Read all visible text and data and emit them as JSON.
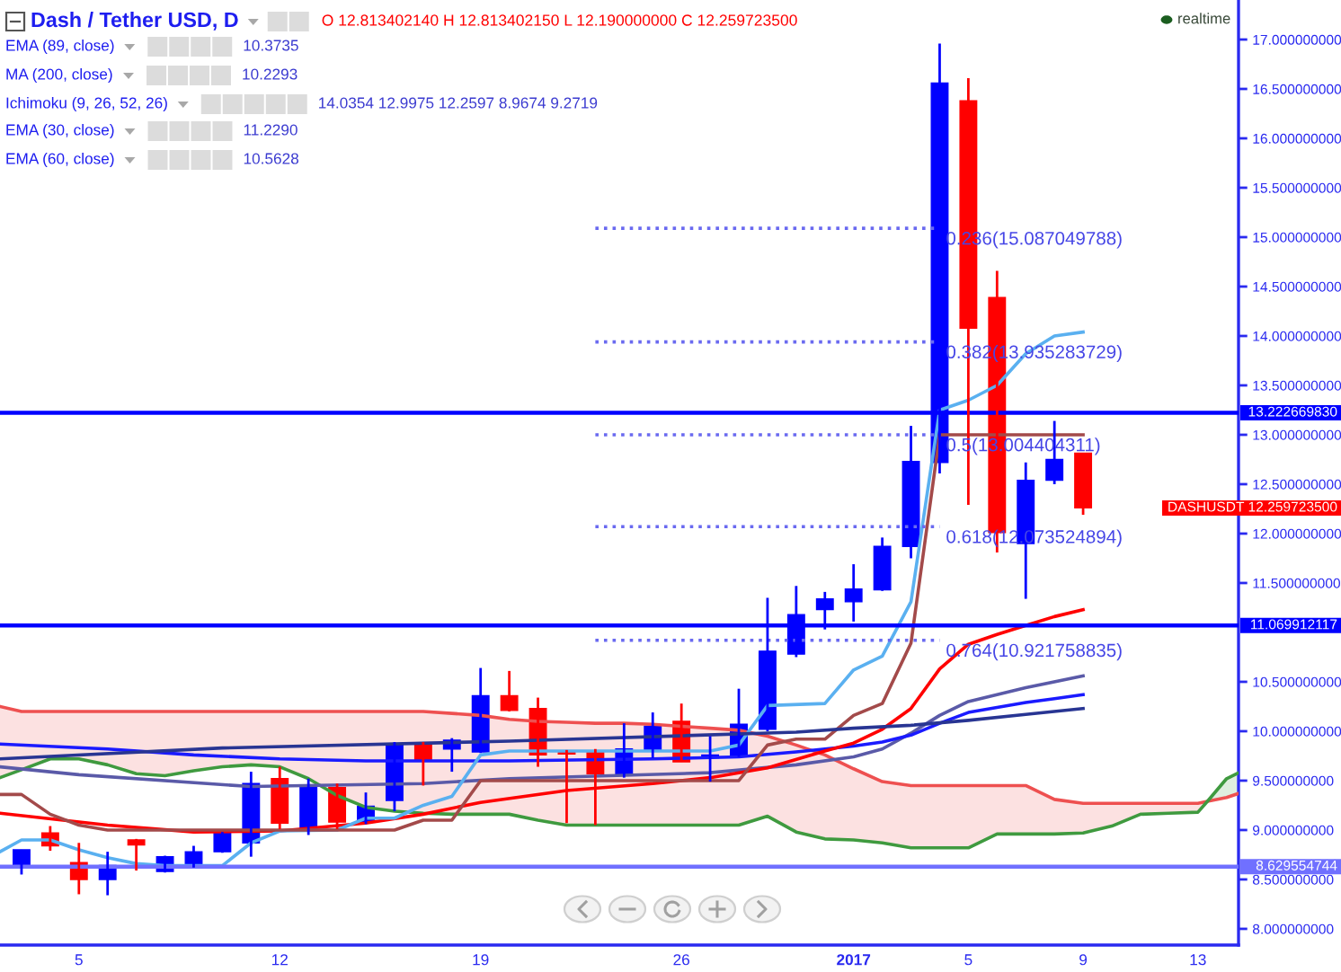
{
  "chart_data": {
    "type": "candlestick",
    "title": "Dash / Tether USD, D",
    "x": [
      "2016-12-03",
      "2016-12-04",
      "2016-12-05",
      "2016-12-06",
      "2016-12-07",
      "2016-12-08",
      "2016-12-09",
      "2016-12-10",
      "2016-12-11",
      "2016-12-12",
      "2016-12-13",
      "2016-12-14",
      "2016-12-15",
      "2016-12-16",
      "2016-12-17",
      "2016-12-18",
      "2016-12-19",
      "2016-12-20",
      "2016-12-21",
      "2016-12-22",
      "2016-12-23",
      "2016-12-24",
      "2016-12-25",
      "2016-12-26",
      "2016-12-27",
      "2016-12-28",
      "2016-12-29",
      "2016-12-30",
      "2016-12-31",
      "2017-01-01",
      "2017-01-02",
      "2017-01-03",
      "2017-01-04",
      "2017-01-05",
      "2017-01-06",
      "2017-01-07",
      "2017-01-08",
      "2017-01-09"
    ],
    "ohlc": [
      [
        8.63,
        8.8,
        8.55,
        8.8
      ],
      [
        8.97,
        9.04,
        8.79,
        8.84
      ],
      [
        8.67,
        8.87,
        8.35,
        8.5
      ],
      [
        8.5,
        8.78,
        8.34,
        8.64
      ],
      [
        8.9,
        8.91,
        8.59,
        8.85
      ],
      [
        8.58,
        8.74,
        8.57,
        8.73
      ],
      [
        8.63,
        8.84,
        8.62,
        8.78
      ],
      [
        8.78,
        8.98,
        8.77,
        8.98
      ],
      [
        8.87,
        9.59,
        8.73,
        9.47
      ],
      [
        9.52,
        9.64,
        9.01,
        9.07
      ],
      [
        9.01,
        9.52,
        8.95,
        9.43
      ],
      [
        9.43,
        9.47,
        9.01,
        9.08
      ],
      [
        9.08,
        9.38,
        9.06,
        9.24
      ],
      [
        9.3,
        9.89,
        9.19,
        9.87
      ],
      [
        9.88,
        9.89,
        9.45,
        9.71
      ],
      [
        9.82,
        9.93,
        9.59,
        9.91
      ],
      [
        9.79,
        10.64,
        9.78,
        10.36
      ],
      [
        10.36,
        10.61,
        10.2,
        10.21
      ],
      [
        10.23,
        10.34,
        9.64,
        9.76
      ],
      [
        9.8,
        9.81,
        9.07,
        9.77
      ],
      [
        9.8,
        9.82,
        9.05,
        9.57
      ],
      [
        9.57,
        10.08,
        9.53,
        9.82
      ],
      [
        9.81,
        10.19,
        9.73,
        10.05
      ],
      [
        10.1,
        10.28,
        9.69,
        9.69
      ],
      [
        9.73,
        9.95,
        9.49,
        9.76
      ],
      [
        9.75,
        10.43,
        9.74,
        10.07
      ],
      [
        10.02,
        11.35,
        10.0,
        10.81
      ],
      [
        10.78,
        11.47,
        10.75,
        11.18
      ],
      [
        11.23,
        11.41,
        11.03,
        11.34
      ],
      [
        11.31,
        11.69,
        11.11,
        11.44
      ],
      [
        11.43,
        11.96,
        11.42,
        11.87
      ],
      [
        11.87,
        13.09,
        11.75,
        12.73
      ],
      [
        12.72,
        16.96,
        12.61,
        16.56
      ],
      [
        16.38,
        16.61,
        12.29,
        14.08
      ],
      [
        14.39,
        14.66,
        11.81,
        12.01
      ],
      [
        11.9,
        12.72,
        11.34,
        12.54
      ],
      [
        12.54,
        13.14,
        12.5,
        12.75
      ],
      [
        12.81340214,
        12.81340215,
        12.19,
        12.2597235
      ]
    ],
    "colors": [
      "#0000ff",
      "#ff0000",
      "#ff0000",
      "#0000ff",
      "#ff0000",
      "#0000ff",
      "#0000ff",
      "#0000ff",
      "#0000ff",
      "#ff0000",
      "#0000ff",
      "#ff0000",
      "#0000ff",
      "#0000ff",
      "#ff0000",
      "#0000ff",
      "#0000ff",
      "#ff0000",
      "#ff0000",
      "#ff0000",
      "#ff0000",
      "#0000ff",
      "#0000ff",
      "#ff0000",
      "#0000ff",
      "#0000ff",
      "#0000ff",
      "#0000ff",
      "#0000ff",
      "#0000ff",
      "#0000ff",
      "#0000ff",
      "#0000ff",
      "#ff0000",
      "#ff0000",
      "#0000ff",
      "#0000ff",
      "#ff0000"
    ],
    "series": [
      {
        "type": "line",
        "color": "#ee5050",
        "x": [
          "2016-12-02T06:00",
          "2016-12-03",
          "2016-12-04",
          "2016-12-05",
          "2016-12-06",
          "2016-12-07",
          "2016-12-08",
          "2016-12-09",
          "2016-12-10",
          "2016-12-11",
          "2016-12-12",
          "2016-12-13",
          "2016-12-14",
          "2016-12-15",
          "2016-12-16",
          "2016-12-17",
          "2016-12-18",
          "2016-12-19",
          "2016-12-20",
          "2016-12-21",
          "2016-12-22",
          "2016-12-23",
          "2016-12-24",
          "2016-12-25",
          "2016-12-26",
          "2016-12-27",
          "2016-12-28",
          "2016-12-29",
          "2016-12-30",
          "2016-12-31",
          "2017-01-01",
          "2017-01-02",
          "2017-01-03",
          "2017-01-04",
          "2017-01-05",
          "2017-01-06",
          "2017-01-07",
          "2017-01-08",
          "2017-01-09",
          "2017-01-10",
          "2017-01-11",
          "2017-01-12",
          "2017-01-13",
          "2017-01-13T08:00",
          "2017-01-14",
          "2017-01-14T10:00"
        ],
        "values": [
          10.25,
          10.2,
          10.2,
          10.2,
          10.2,
          10.2,
          10.2,
          10.2,
          10.2,
          10.2,
          10.2,
          10.2,
          10.2,
          10.2,
          10.2,
          10.2,
          10.18,
          10.16,
          10.12,
          10.1,
          10.09,
          10.08,
          10.08,
          10.07,
          10.05,
          10.03,
          10.01,
          9.95,
          9.86,
          9.76,
          9.62,
          9.49,
          9.45,
          9.45,
          9.45,
          9.45,
          9.45,
          9.31,
          9.27,
          9.27,
          9.27,
          9.27,
          9.27,
          9.29,
          9.33,
          9.37
        ],
        "lower": [
          9.53,
          9.61,
          9.72,
          9.72,
          9.66,
          9.57,
          9.55,
          9.6,
          9.64,
          9.66,
          9.64,
          9.52,
          9.35,
          9.23,
          9.19,
          9.17,
          9.16,
          9.16,
          9.16,
          9.1,
          9.05,
          9.05,
          9.05,
          9.05,
          9.05,
          9.05,
          9.05,
          9.14,
          8.98,
          8.91,
          8.9,
          8.87,
          8.82,
          8.82,
          8.82,
          8.96,
          8.96,
          8.96,
          8.97,
          9.04,
          9.16,
          9.17,
          9.18,
          9.29,
          null,
          null
        ],
        "upper": [
          10.25,
          10.2,
          10.2,
          10.2,
          10.2,
          10.2,
          10.2,
          10.2,
          10.2,
          10.2,
          10.2,
          10.2,
          10.2,
          10.2,
          10.2,
          10.2,
          10.18,
          10.16,
          10.12,
          10.1,
          10.09,
          10.08,
          10.08,
          10.07,
          10.05,
          10.03,
          10.01,
          9.95,
          9.86,
          9.76,
          9.62,
          9.49,
          9.45,
          9.45,
          9.45,
          9.45,
          9.45,
          9.31,
          9.27,
          9.27,
          9.27,
          9.27,
          9.27,
          9.29,
          null,
          null
        ]
      },
      {
        "type": "line",
        "color": "#3f9a3f",
        "x": [
          "2016-12-02T06:00",
          "2016-12-03",
          "2016-12-04",
          "2016-12-05",
          "2016-12-06",
          "2016-12-07",
          "2016-12-08",
          "2016-12-09",
          "2016-12-10",
          "2016-12-11",
          "2016-12-12",
          "2016-12-13",
          "2016-12-14",
          "2016-12-15",
          "2016-12-16",
          "2016-12-17",
          "2016-12-18",
          "2016-12-19",
          "2016-12-20",
          "2016-12-21",
          "2016-12-22",
          "2016-12-23",
          "2016-12-24",
          "2016-12-25",
          "2016-12-26",
          "2016-12-27",
          "2016-12-28",
          "2016-12-29",
          "2016-12-30",
          "2016-12-31",
          "2017-01-01",
          "2017-01-02",
          "2017-01-03",
          "2017-01-04",
          "2017-01-05",
          "2017-01-06",
          "2017-01-07",
          "2017-01-08",
          "2017-01-09",
          "2017-01-10",
          "2017-01-11",
          "2017-01-12",
          "2017-01-13",
          "2017-01-13T08:00",
          "2017-01-14",
          "2017-01-14T10:00"
        ],
        "values": [
          9.53,
          9.61,
          9.72,
          9.72,
          9.66,
          9.57,
          9.55,
          9.6,
          9.64,
          9.66,
          9.64,
          9.52,
          9.35,
          9.23,
          9.19,
          9.17,
          9.16,
          9.16,
          9.16,
          9.1,
          9.05,
          9.05,
          9.05,
          9.05,
          9.05,
          9.05,
          9.05,
          9.14,
          8.98,
          8.91,
          8.9,
          8.87,
          8.82,
          8.82,
          8.82,
          8.96,
          8.96,
          8.96,
          8.97,
          9.04,
          9.16,
          9.17,
          9.18,
          9.29,
          9.52,
          9.58
        ],
        "lower": [
          null,
          null,
          null,
          null,
          null,
          null,
          null,
          null,
          null,
          null,
          null,
          null,
          null,
          null,
          null,
          null,
          null,
          null,
          null,
          null,
          null,
          null,
          null,
          null,
          null,
          null,
          null,
          null,
          null,
          null,
          null,
          null,
          null,
          null,
          null,
          null,
          null,
          null,
          null,
          null,
          null,
          null,
          null,
          9.29,
          9.33,
          9.37
        ],
        "upper": [
          null,
          null,
          null,
          null,
          null,
          null,
          null,
          null,
          null,
          null,
          null,
          null,
          null,
          null,
          null,
          null,
          null,
          null,
          null,
          null,
          null,
          null,
          null,
          null,
          null,
          null,
          null,
          null,
          null,
          null,
          null,
          null,
          null,
          null,
          null,
          null,
          null,
          null,
          null,
          null,
          null,
          null,
          null,
          9.29,
          9.52,
          9.58
        ]
      },
      {
        "type": "line",
        "color": "#5a5aa8",
        "x": [
          "2016-12-02T06:00",
          "2016-12-05",
          "2016-12-11",
          "2016-12-17",
          "2016-12-20",
          "2016-12-27",
          "2016-12-30",
          "2017-01-01",
          "2017-01-02",
          "2017-01-03",
          "2017-01-04",
          "2017-01-05",
          "2017-01-07",
          "2017-01-09"
        ],
        "values": [
          9.64,
          9.56,
          9.44,
          9.47,
          9.52,
          9.58,
          9.66,
          9.74,
          9.82,
          9.98,
          10.16,
          10.3,
          10.44,
          10.56
        ]
      },
      {
        "type": "line",
        "color": "#1a1aff",
        "x": [
          "2016-12-02T06:00",
          "2016-12-06",
          "2016-12-09",
          "2016-12-12",
          "2016-12-15",
          "2016-12-20",
          "2016-12-25",
          "2016-12-28",
          "2016-12-30",
          "2017-01-01",
          "2017-01-02",
          "2017-01-03",
          "2017-01-04",
          "2017-01-05",
          "2017-01-06",
          "2017-01-07",
          "2017-01-08",
          "2017-01-09"
        ],
        "values": [
          9.87,
          9.82,
          9.76,
          9.72,
          9.7,
          9.7,
          9.72,
          9.74,
          9.79,
          9.85,
          9.89,
          9.96,
          10.08,
          10.19,
          10.24,
          10.29,
          10.33,
          10.37
        ]
      },
      {
        "type": "line",
        "color": "#ff0000",
        "x": [
          "2016-12-02T06:00",
          "2016-12-06",
          "2016-12-09",
          "2016-12-12",
          "2016-12-15",
          "2016-12-17",
          "2016-12-19",
          "2016-12-22",
          "2016-12-25",
          "2016-12-27",
          "2016-12-29",
          "2016-12-31",
          "2017-01-01",
          "2017-01-02",
          "2017-01-03",
          "2017-01-04",
          "2017-01-05",
          "2017-01-06",
          "2017-01-07",
          "2017-01-08",
          "2017-01-09"
        ],
        "values": [
          9.17,
          9.05,
          8.98,
          8.99,
          9.07,
          9.16,
          9.28,
          9.4,
          9.47,
          9.53,
          9.63,
          9.8,
          9.88,
          10.02,
          10.23,
          10.63,
          10.88,
          10.98,
          11.07,
          11.16,
          11.23
        ]
      },
      {
        "type": "line",
        "color": "#5ab0f0",
        "x": [
          "2016-12-02T06:00",
          "2016-12-03",
          "2016-12-04",
          "2016-12-05",
          "2016-12-06",
          "2016-12-07",
          "2016-12-08",
          "2016-12-10",
          "2016-12-11",
          "2016-12-12",
          "2016-12-14",
          "2016-12-15",
          "2016-12-16",
          "2016-12-17",
          "2016-12-18",
          "2016-12-19",
          "2016-12-20",
          "2016-12-27",
          "2016-12-28",
          "2016-12-29",
          "2016-12-31",
          "2017-01-01",
          "2017-01-02",
          "2017-01-03",
          "2017-01-04",
          "2017-01-05",
          "2017-01-06",
          "2017-01-07",
          "2017-01-08",
          "2017-01-09"
        ],
        "values": [
          8.78,
          8.9,
          8.9,
          8.8,
          8.72,
          8.66,
          8.64,
          8.64,
          8.87,
          8.99,
          9.0,
          9.12,
          9.12,
          9.25,
          9.34,
          9.76,
          9.8,
          9.8,
          9.86,
          10.26,
          10.28,
          10.62,
          10.76,
          11.31,
          13.25,
          13.35,
          13.5,
          13.82,
          14.0,
          14.04
        ]
      },
      {
        "type": "line",
        "color": "#a34a4a",
        "x": [
          "2016-12-02T06:00",
          "2016-12-03",
          "2016-12-04",
          "2016-12-05",
          "2016-12-06",
          "2016-12-16",
          "2016-12-17",
          "2016-12-18",
          "2016-12-19",
          "2016-12-28",
          "2016-12-29",
          "2016-12-30",
          "2016-12-31",
          "2017-01-01",
          "2017-01-02",
          "2017-01-03",
          "2017-01-04",
          "2017-01-09"
        ],
        "values": [
          9.36,
          9.36,
          9.16,
          9.05,
          9.0,
          9.0,
          9.1,
          9.1,
          9.5,
          9.5,
          9.86,
          9.92,
          9.92,
          10.16,
          10.28,
          10.89,
          13.0,
          13.0
        ]
      },
      {
        "type": "line",
        "color": "#283593",
        "x": [
          "2016-12-02T06:00",
          "2016-12-10",
          "2016-12-20",
          "2016-12-30",
          "2017-01-01",
          "2017-01-03",
          "2017-01-05",
          "2017-01-07",
          "2017-01-09"
        ],
        "values": [
          9.72,
          9.83,
          9.9,
          9.99,
          10.03,
          10.06,
          10.11,
          10.17,
          10.2293
        ]
      },
      {
        "type": "line",
        "color": "#6a6af0",
        "line_style": "dotted",
        "x": [
          "2016-12-23",
          "2017-01-04"
        ],
        "values": [
          15.09,
          15.09
        ]
      },
      {
        "type": "line",
        "color": "#6a6af0",
        "line_style": "dotted",
        "x": [
          "2016-12-23",
          "2017-01-04"
        ],
        "values": [
          13.94,
          13.94
        ]
      },
      {
        "type": "line",
        "color": "#6a6af0",
        "line_style": "dotted",
        "x": [
          "2016-12-23",
          "2017-01-04"
        ],
        "values": [
          13.0,
          13.0
        ]
      },
      {
        "type": "line",
        "color": "#6a6af0",
        "line_style": "dotted",
        "x": [
          "2016-12-23",
          "2017-01-04"
        ],
        "values": [
          12.07,
          12.07
        ]
      },
      {
        "type": "line",
        "color": "#6a6af0",
        "line_style": "dotted",
        "x": [
          "2016-12-23",
          "2017-01-04"
        ],
        "values": [
          10.92,
          10.92
        ]
      }
    ],
    "xlim": [
      "2016-12-02T06:00",
      "2017-01-14T10:00"
    ],
    "xticks": [
      {
        "value": "2016-12-05",
        "label": "5"
      },
      {
        "value": "2016-12-12",
        "label": "12"
      },
      {
        "value": "2016-12-19",
        "label": "19"
      },
      {
        "value": "2016-12-26",
        "label": "26"
      },
      {
        "value": "2017-01-01",
        "label": "2017"
      },
      {
        "value": "2017-01-05",
        "label": "5"
      },
      {
        "value": "2017-01-09",
        "label": "9"
      },
      {
        "value": "2017-01-13",
        "label": "13"
      }
    ],
    "ylim": [
      7.836,
      17.4
    ],
    "yticks": [
      {
        "value": 8,
        "label": "8.000000000"
      },
      {
        "value": 8.5,
        "label": "8.500000000"
      },
      {
        "value": 9,
        "label": "9.000000000"
      },
      {
        "value": 9.5,
        "label": "9.500000000"
      },
      {
        "value": 10,
        "label": "10.000000000"
      },
      {
        "value": 10.5,
        "label": "10.500000000"
      },
      {
        "value": 11.5,
        "label": "11.500000000"
      },
      {
        "value": 12,
        "label": "12.000000000"
      },
      {
        "value": 12.5,
        "label": "12.500000000"
      },
      {
        "value": 13,
        "label": "13.000000000"
      },
      {
        "value": 13.5,
        "label": "13.500000000"
      },
      {
        "value": 14,
        "label": "14.000000000"
      },
      {
        "value": 14.5,
        "label": "14.500000000"
      },
      {
        "value": 15,
        "label": "15.000000000"
      },
      {
        "value": 15.5,
        "label": "15.500000000"
      },
      {
        "value": 16,
        "label": "16.000000000"
      },
      {
        "value": 16.5,
        "label": "16.500000000"
      },
      {
        "value": 17,
        "label": "17.000000000"
      }
    ],
    "ref_lines": [
      {
        "axis": "y",
        "value": 13.22266983,
        "label": "13.222669830",
        "color": "#0000ff"
      },
      {
        "axis": "y",
        "value": 11.069912117,
        "label": "11.069912117",
        "color": "#0000ff"
      },
      {
        "axis": "y",
        "value": 8.629554744,
        "label": "8.629554744",
        "color": "#7070ff"
      }
    ],
    "annotations": [
      "O 12.813402140 H 12.813402150 L 12.190000000 C 12.259723500",
      "EMA (89, close)",
      "10.3735",
      "MA (200, close)",
      "10.2293",
      "Ichimoku (9, 26, 52, 26)",
      "14.0354 12.9975 12.2597 8.9674 9.2719",
      "EMA (30, close)",
      "11.2290",
      "EMA (60, close)",
      "10.5628",
      "realtime",
      "DASHUSDT 12.259723500",
      {
        "text": "0.236(15.087049788)",
        "x": "2017-01-04",
        "y": 15.09
      },
      {
        "text": "0.382(13.935283729)",
        "x": "2017-01-04",
        "y": 13.94
      },
      {
        "text": "0.5(13.004404311)",
        "x": "2017-01-04",
        "y": 13.0
      },
      {
        "text": "0.618(12.073524894)",
        "x": "2017-01-04",
        "y": 12.07
      },
      {
        "text": "0.764(10.921758835)",
        "x": "2017-01-04",
        "y": 10.92
      }
    ],
    "grid": false
  }
}
